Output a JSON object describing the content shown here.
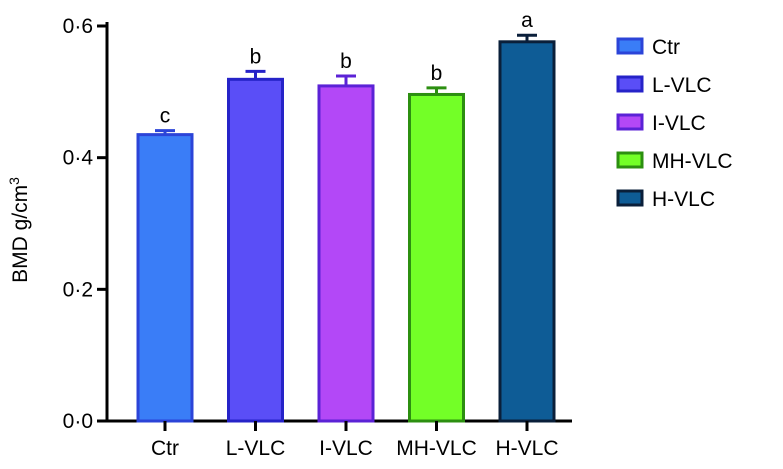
{
  "chart_data": {
    "type": "bar",
    "title": "",
    "xlabel": "",
    "ylabel": "BMD g/cm",
    "ylabel_superscript": "3",
    "ylim": [
      0,
      0.6
    ],
    "yticks": [
      {
        "value": 0.0,
        "label": "0·0"
      },
      {
        "value": 0.2,
        "label": "0·2"
      },
      {
        "value": 0.4,
        "label": "0·4"
      },
      {
        "value": 0.6,
        "label": "0·6"
      }
    ],
    "categories": [
      "Ctr",
      "L-VLC",
      "I-VLC",
      "MH-VLC",
      "H-VLC"
    ],
    "values": [
      0.435,
      0.519,
      0.509,
      0.496,
      0.576
    ],
    "errors": [
      0.006,
      0.012,
      0.015,
      0.01,
      0.01
    ],
    "significance": [
      "c",
      "b",
      "b",
      "b",
      "a"
    ],
    "colors": [
      {
        "fill": "#3a7df7",
        "edge": "#2b44d8"
      },
      {
        "fill": "#5a4ef7",
        "edge": "#2623c8"
      },
      {
        "fill": "#b348f7",
        "edge": "#5b22d6"
      },
      {
        "fill": "#73ff27",
        "edge": "#2c8f10"
      },
      {
        "fill": "#0e5c96",
        "edge": "#0a1f3a"
      }
    ],
    "legend": [
      "Ctr",
      "L-VLC",
      "I-VLC",
      "MH-VLC",
      "H-VLC"
    ],
    "legend_position": "right"
  }
}
